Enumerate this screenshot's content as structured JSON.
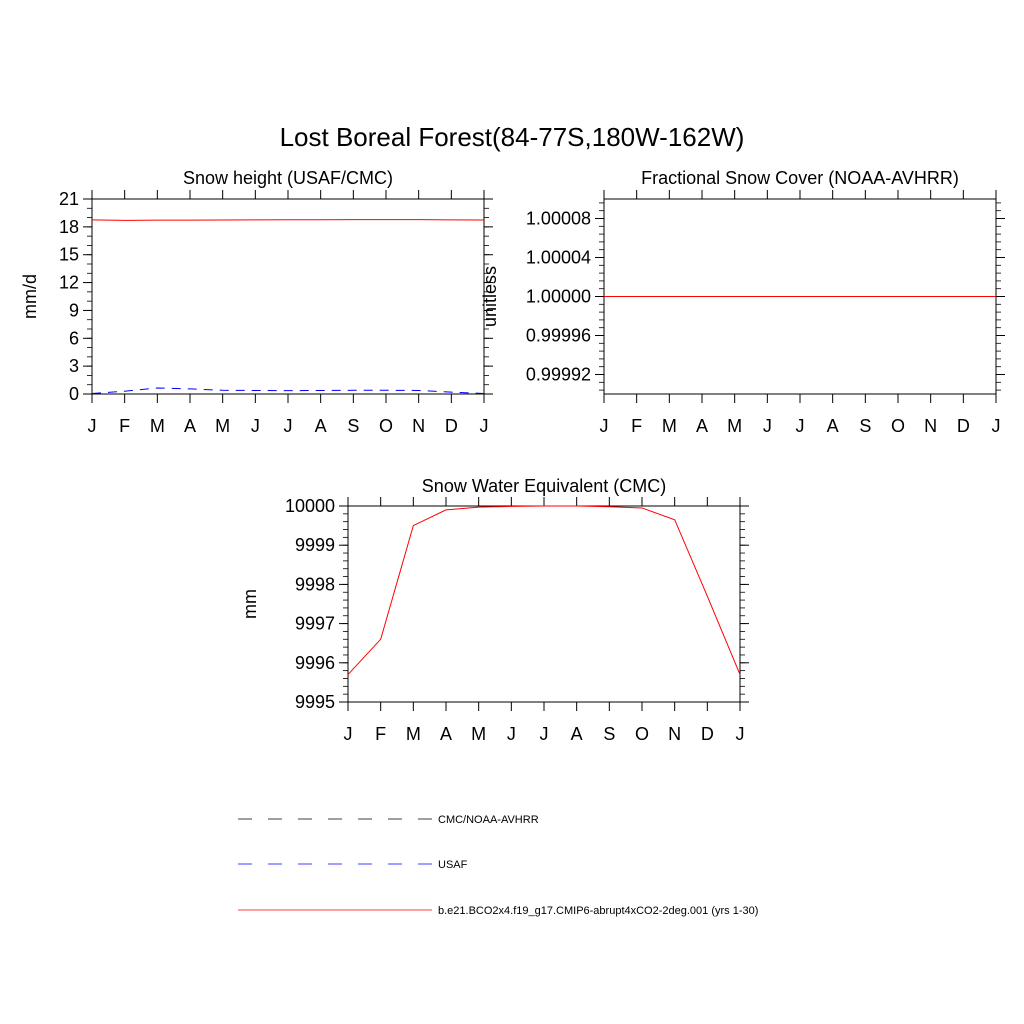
{
  "figure_title": "Lost Boreal Forest(84-77S,180W-162W)",
  "months": [
    "J",
    "F",
    "M",
    "A",
    "M",
    "J",
    "J",
    "A",
    "S",
    "O",
    "N",
    "D",
    "J"
  ],
  "chart_data": [
    {
      "type": "line",
      "title": "Snow height (USAF/CMC)",
      "xlabel": "",
      "ylabel": "mm/d",
      "x": [
        1,
        2,
        3,
        4,
        5,
        6,
        7,
        8,
        9,
        10,
        11,
        12,
        13
      ],
      "ylim": [
        0,
        21
      ],
      "yticks": [
        0,
        3,
        6,
        9,
        12,
        15,
        18,
        21
      ],
      "ytick_labels": [
        "0",
        "3",
        "6",
        "9",
        "12",
        "15",
        "18",
        "21"
      ],
      "series": [
        {
          "name": "b.e21.BCO2x4.f19_g17.CMIP6-abrupt4xCO2-2deg.001 (yrs 1-30)",
          "color": "#ff0000",
          "dash": "solid",
          "values": [
            18.75,
            18.7,
            18.72,
            18.73,
            18.74,
            18.75,
            18.76,
            18.77,
            18.78,
            18.78,
            18.78,
            18.75,
            18.74
          ]
        },
        {
          "name": "USAF",
          "color": "#0000ff",
          "dash": "dashed",
          "values": [
            0.05,
            0.3,
            0.65,
            0.55,
            0.4,
            0.38,
            0.36,
            0.38,
            0.4,
            0.4,
            0.38,
            0.2,
            0.05
          ]
        }
      ]
    },
    {
      "type": "line",
      "title": "Fractional Snow Cover (NOAA-AVHRR)",
      "xlabel": "",
      "ylabel": "unitless",
      "x": [
        1,
        2,
        3,
        4,
        5,
        6,
        7,
        8,
        9,
        10,
        11,
        12,
        13
      ],
      "ylim": [
        0.9999,
        1.0001
      ],
      "yticks": [
        0.99992,
        0.99996,
        1.0,
        1.00004,
        1.00008
      ],
      "ytick_labels": [
        "0.99992",
        "0.99996",
        "1.00000",
        "1.00004",
        "1.00008"
      ],
      "series": [
        {
          "name": "b.e21.BCO2x4.f19_g17.CMIP6-abrupt4xCO2-2deg.001 (yrs 1-30)",
          "color": "#ff0000",
          "dash": "solid",
          "values": [
            1,
            1,
            1,
            1,
            1,
            1,
            1,
            1,
            1,
            1,
            1,
            1,
            1
          ]
        }
      ]
    },
    {
      "type": "line",
      "title": "Snow Water Equivalent (CMC)",
      "xlabel": "",
      "ylabel": "mm",
      "x": [
        1,
        2,
        3,
        4,
        5,
        6,
        7,
        8,
        9,
        10,
        11,
        12,
        13
      ],
      "ylim": [
        9995,
        10000
      ],
      "yticks": [
        9995,
        9996,
        9997,
        9998,
        9999,
        10000
      ],
      "ytick_labels": [
        "9995",
        "9996",
        "9997",
        "9998",
        "9999",
        "10000"
      ],
      "series": [
        {
          "name": "b.e21.BCO2x4.f19_g17.CMIP6-abrupt4xCO2-2deg.001 (yrs 1-30)",
          "color": "#ff0000",
          "dash": "solid",
          "values": [
            9995.7,
            9996.6,
            9999.5,
            9999.9,
            9999.97,
            9999.99,
            10000.0,
            10000.0,
            9999.98,
            9999.95,
            9999.65,
            9997.7,
            9995.7
          ]
        }
      ]
    }
  ],
  "legend": {
    "position": "bottom",
    "items": [
      {
        "label": "CMC/NOAA-AVHRR",
        "color": "#000000",
        "dash": "dashed"
      },
      {
        "label": "USAF",
        "color": "#0000ff",
        "dash": "dashed"
      },
      {
        "label": "b.e21.BCO2x4.f19_g17.CMIP6-abrupt4xCO2-2deg.001 (yrs 1-30)",
        "color": "#ff0000",
        "dash": "solid"
      }
    ]
  }
}
